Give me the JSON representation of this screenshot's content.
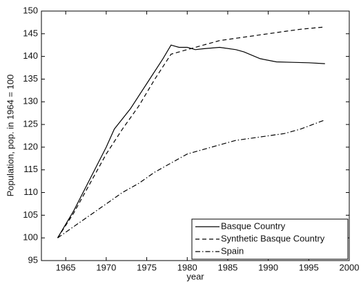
{
  "chart_data": {
    "type": "line",
    "xlabel": "year",
    "ylabel": "Population, pop. in 1964 = 100",
    "xlim": [
      1962,
      2000
    ],
    "ylim": [
      95,
      150
    ],
    "xticks": [
      1965,
      1970,
      1975,
      1980,
      1985,
      1990,
      1995,
      2000
    ],
    "yticks": [
      95,
      100,
      105,
      110,
      115,
      120,
      125,
      130,
      135,
      140,
      145,
      150
    ],
    "legend": "lower right",
    "series": [
      {
        "name": "Basque Country",
        "color": "#000000",
        "dash": "solid",
        "x": [
          1964,
          1966,
          1968,
          1970,
          1971,
          1973,
          1975,
          1977,
          1978,
          1979,
          1980,
          1981,
          1982,
          1984,
          1986,
          1987,
          1989,
          1991,
          1993,
          1995,
          1997
        ],
        "values": [
          100,
          106,
          113,
          120,
          124,
          128.5,
          134,
          139.5,
          142.5,
          142,
          142,
          141.5,
          141.7,
          142,
          141.5,
          141,
          139.5,
          138.8,
          138.7,
          138.6,
          138.4
        ]
      },
      {
        "name": "Synthetic Basque Country",
        "color": "#000000",
        "dash": "dashed",
        "x": [
          1964,
          1966,
          1968,
          1970,
          1972,
          1974,
          1976,
          1978,
          1980,
          1982,
          1984,
          1986,
          1988,
          1990,
          1992,
          1994,
          1997
        ],
        "values": [
          100,
          105.5,
          112,
          118.5,
          124,
          129,
          135,
          140.5,
          141.5,
          142.5,
          143.5,
          144,
          144.5,
          145,
          145.5,
          146,
          146.5
        ]
      },
      {
        "name": "Spain",
        "color": "#000000",
        "dash": "dashdot",
        "x": [
          1964,
          1966,
          1968,
          1970,
          1972,
          1974,
          1976,
          1978,
          1980,
          1982,
          1984,
          1986,
          1988,
          1990,
          1992,
          1994,
          1997
        ],
        "values": [
          100,
          102.5,
          105,
          107.5,
          110,
          112,
          114.5,
          116.5,
          118.5,
          119.5,
          120.5,
          121.5,
          122,
          122.5,
          123,
          124,
          126
        ]
      }
    ]
  }
}
